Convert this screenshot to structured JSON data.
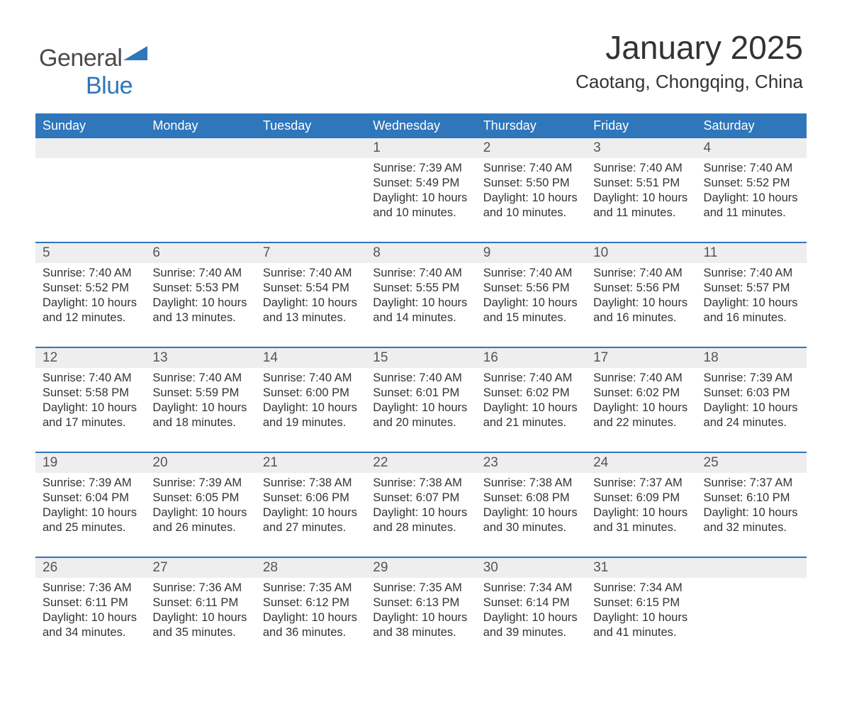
{
  "logo": {
    "text1": "General",
    "text2": "Blue",
    "color1": "#4a4a4a",
    "color2": "#2f76bb",
    "triangle_color": "#2f76bb"
  },
  "title": "January 2025",
  "location": "Caotang, Chongqing, China",
  "colors": {
    "header_bg": "#2f76bb",
    "header_fg": "#ffffff",
    "daynum_bg": "#eeeeee",
    "week_border": "#2f76bb",
    "text": "#333333"
  },
  "days_of_week": [
    "Sunday",
    "Monday",
    "Tuesday",
    "Wednesday",
    "Thursday",
    "Friday",
    "Saturday"
  ],
  "labels": {
    "sunrise": "Sunrise:",
    "sunset": "Sunset:",
    "daylight": "Daylight:"
  },
  "weeks": [
    [
      null,
      null,
      null,
      {
        "n": "1",
        "sr": "7:39 AM",
        "ss": "5:49 PM",
        "dl": "10 hours and 10 minutes."
      },
      {
        "n": "2",
        "sr": "7:40 AM",
        "ss": "5:50 PM",
        "dl": "10 hours and 10 minutes."
      },
      {
        "n": "3",
        "sr": "7:40 AM",
        "ss": "5:51 PM",
        "dl": "10 hours and 11 minutes."
      },
      {
        "n": "4",
        "sr": "7:40 AM",
        "ss": "5:52 PM",
        "dl": "10 hours and 11 minutes."
      }
    ],
    [
      {
        "n": "5",
        "sr": "7:40 AM",
        "ss": "5:52 PM",
        "dl": "10 hours and 12 minutes."
      },
      {
        "n": "6",
        "sr": "7:40 AM",
        "ss": "5:53 PM",
        "dl": "10 hours and 13 minutes."
      },
      {
        "n": "7",
        "sr": "7:40 AM",
        "ss": "5:54 PM",
        "dl": "10 hours and 13 minutes."
      },
      {
        "n": "8",
        "sr": "7:40 AM",
        "ss": "5:55 PM",
        "dl": "10 hours and 14 minutes."
      },
      {
        "n": "9",
        "sr": "7:40 AM",
        "ss": "5:56 PM",
        "dl": "10 hours and 15 minutes."
      },
      {
        "n": "10",
        "sr": "7:40 AM",
        "ss": "5:56 PM",
        "dl": "10 hours and 16 minutes."
      },
      {
        "n": "11",
        "sr": "7:40 AM",
        "ss": "5:57 PM",
        "dl": "10 hours and 16 minutes."
      }
    ],
    [
      {
        "n": "12",
        "sr": "7:40 AM",
        "ss": "5:58 PM",
        "dl": "10 hours and 17 minutes."
      },
      {
        "n": "13",
        "sr": "7:40 AM",
        "ss": "5:59 PM",
        "dl": "10 hours and 18 minutes."
      },
      {
        "n": "14",
        "sr": "7:40 AM",
        "ss": "6:00 PM",
        "dl": "10 hours and 19 minutes."
      },
      {
        "n": "15",
        "sr": "7:40 AM",
        "ss": "6:01 PM",
        "dl": "10 hours and 20 minutes."
      },
      {
        "n": "16",
        "sr": "7:40 AM",
        "ss": "6:02 PM",
        "dl": "10 hours and 21 minutes."
      },
      {
        "n": "17",
        "sr": "7:40 AM",
        "ss": "6:02 PM",
        "dl": "10 hours and 22 minutes."
      },
      {
        "n": "18",
        "sr": "7:39 AM",
        "ss": "6:03 PM",
        "dl": "10 hours and 24 minutes."
      }
    ],
    [
      {
        "n": "19",
        "sr": "7:39 AM",
        "ss": "6:04 PM",
        "dl": "10 hours and 25 minutes."
      },
      {
        "n": "20",
        "sr": "7:39 AM",
        "ss": "6:05 PM",
        "dl": "10 hours and 26 minutes."
      },
      {
        "n": "21",
        "sr": "7:38 AM",
        "ss": "6:06 PM",
        "dl": "10 hours and 27 minutes."
      },
      {
        "n": "22",
        "sr": "7:38 AM",
        "ss": "6:07 PM",
        "dl": "10 hours and 28 minutes."
      },
      {
        "n": "23",
        "sr": "7:38 AM",
        "ss": "6:08 PM",
        "dl": "10 hours and 30 minutes."
      },
      {
        "n": "24",
        "sr": "7:37 AM",
        "ss": "6:09 PM",
        "dl": "10 hours and 31 minutes."
      },
      {
        "n": "25",
        "sr": "7:37 AM",
        "ss": "6:10 PM",
        "dl": "10 hours and 32 minutes."
      }
    ],
    [
      {
        "n": "26",
        "sr": "7:36 AM",
        "ss": "6:11 PM",
        "dl": "10 hours and 34 minutes."
      },
      {
        "n": "27",
        "sr": "7:36 AM",
        "ss": "6:11 PM",
        "dl": "10 hours and 35 minutes."
      },
      {
        "n": "28",
        "sr": "7:35 AM",
        "ss": "6:12 PM",
        "dl": "10 hours and 36 minutes."
      },
      {
        "n": "29",
        "sr": "7:35 AM",
        "ss": "6:13 PM",
        "dl": "10 hours and 38 minutes."
      },
      {
        "n": "30",
        "sr": "7:34 AM",
        "ss": "6:14 PM",
        "dl": "10 hours and 39 minutes."
      },
      {
        "n": "31",
        "sr": "7:34 AM",
        "ss": "6:15 PM",
        "dl": "10 hours and 41 minutes."
      },
      null
    ]
  ]
}
